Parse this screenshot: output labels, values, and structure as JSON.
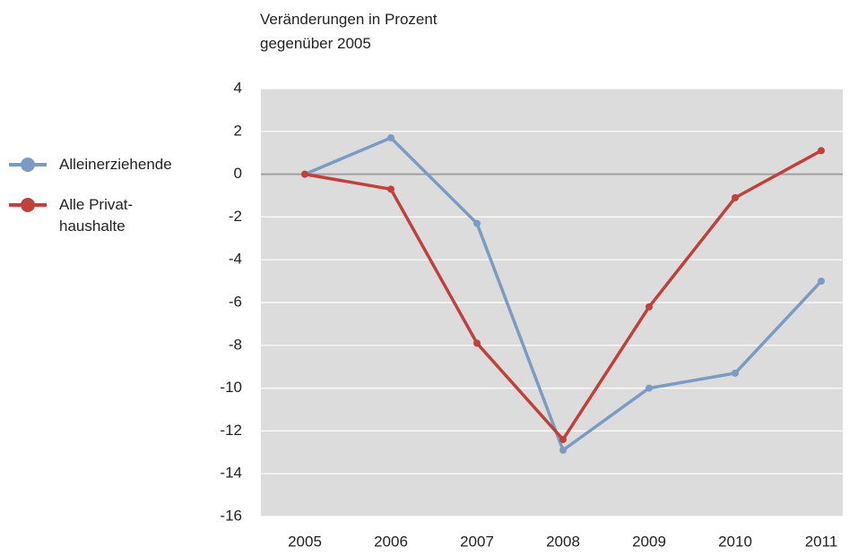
{
  "chart_data": {
    "type": "line",
    "title": "Veränderungen in Prozent\ngegenüber 2005",
    "categories": [
      "2005",
      "2006",
      "2007",
      "2008",
      "2009",
      "2010",
      "2011"
    ],
    "series": [
      {
        "name": "Alleinerziehende",
        "color": "#7b9cc2",
        "values": [
          0,
          1.7,
          -2.3,
          -12.9,
          -10.0,
          -9.3,
          -5.0
        ]
      },
      {
        "name": "Alle Privat-\nhaushalte",
        "color": "#c0403a",
        "values": [
          0,
          -0.7,
          -7.9,
          -12.4,
          -6.2,
          -1.1,
          1.1
        ]
      }
    ],
    "ylim": [
      -16,
      4
    ],
    "yticks": [
      -16,
      -14,
      -12,
      -10,
      -8,
      -6,
      -4,
      -2,
      0,
      2,
      4
    ],
    "grid": true
  }
}
